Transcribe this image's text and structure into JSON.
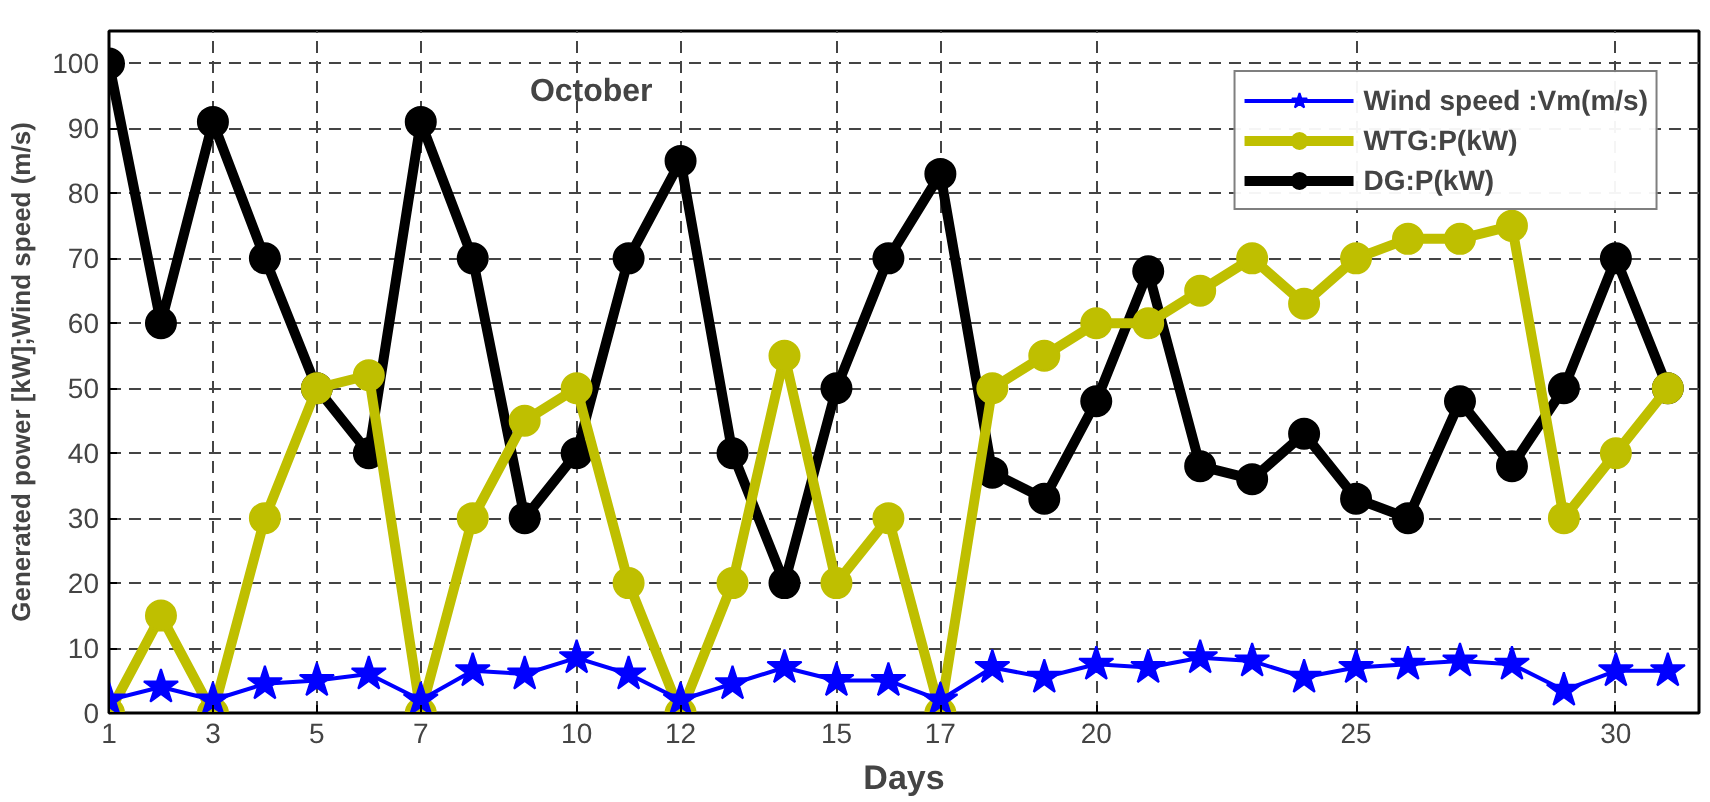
{
  "chart_data": {
    "type": "line",
    "title": "October",
    "xlabel": "Days",
    "ylabel": "Generated power [kW];Wind speed (m/s)",
    "x": [
      1,
      2,
      3,
      4,
      5,
      6,
      7,
      8,
      9,
      10,
      11,
      12,
      13,
      14,
      15,
      16,
      17,
      18,
      19,
      20,
      21,
      22,
      23,
      24,
      25,
      26,
      27,
      28,
      29,
      30,
      31
    ],
    "xlim": [
      1,
      31.6
    ],
    "xticks": [
      1,
      3,
      5,
      7,
      10,
      12,
      15,
      17,
      20,
      25,
      30
    ],
    "ylim": [
      0,
      105
    ],
    "yticks": [
      0,
      10,
      20,
      30,
      40,
      50,
      60,
      70,
      80,
      90,
      100
    ],
    "grid": true,
    "legend": "top right",
    "series": [
      {
        "name": "Wind speed :Vm(m/s)",
        "color": "#0000ff",
        "marker": "star",
        "values": [
          2,
          4,
          2,
          4.5,
          5,
          6,
          2,
          6.5,
          6,
          8.5,
          6,
          2,
          4.5,
          7,
          5,
          5,
          2,
          7,
          5.5,
          7.5,
          7,
          8.5,
          8,
          5.5,
          7,
          7.5,
          8,
          7.5,
          3.5,
          6.5,
          6.5
        ]
      },
      {
        "name": "WTG:P(kW)",
        "color": "#bfbf00",
        "marker": "circle",
        "values": [
          0,
          15,
          0,
          30,
          50,
          52,
          0,
          30,
          45,
          50,
          20,
          0,
          20,
          55,
          20,
          30,
          0,
          50,
          55,
          60,
          60,
          65,
          70,
          63,
          70,
          73,
          73,
          75,
          30,
          40,
          50
        ]
      },
      {
        "name": "DG:P(kW)",
        "color": "#000000",
        "marker": "circle",
        "values": [
          100,
          60,
          91,
          70,
          50,
          40,
          91,
          70,
          30,
          40,
          70,
          85,
          40,
          20,
          50,
          70,
          83,
          37,
          33,
          48,
          68,
          38,
          36,
          43,
          33,
          30,
          48,
          38,
          50,
          70,
          50
        ]
      }
    ]
  }
}
